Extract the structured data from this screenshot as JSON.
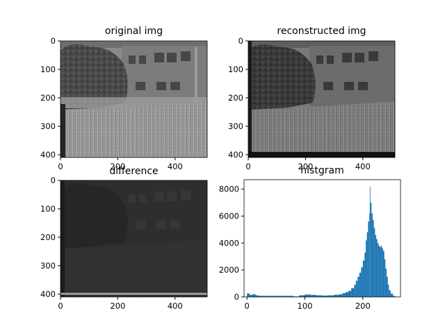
{
  "chart_data": [
    {
      "type": "image",
      "title": "original img",
      "content": "grayscale photo: tree at left, multi-storey building behind, grass field in foreground",
      "xlim": [
        0,
        512
      ],
      "ylim": [
        410,
        0
      ],
      "xticks": [
        0,
        200,
        400
      ],
      "yticks": [
        0,
        100,
        200,
        300,
        400
      ]
    },
    {
      "type": "image",
      "title": "reconstructed img",
      "content": "reconstructed grayscale photo, slightly darker, dark border bands at left and bottom",
      "xlim": [
        0,
        512
      ],
      "ylim": [
        410,
        0
      ],
      "xticks": [
        0,
        200,
        400
      ],
      "yticks": [
        0,
        100,
        200,
        300,
        400
      ]
    },
    {
      "type": "image",
      "title": "difference",
      "content": "dark difference image with faint outlines of building windows and grass texture",
      "xlim": [
        0,
        512
      ],
      "ylim": [
        410,
        0
      ],
      "xticks": [
        0,
        200,
        400
      ],
      "yticks": [
        0,
        100,
        200,
        300,
        400
      ]
    },
    {
      "type": "histogram",
      "title": "histgram",
      "color": "#1f77b4",
      "xlim": [
        -5,
        265
      ],
      "ylim": [
        0,
        8700
      ],
      "xticks": [
        0,
        100,
        200
      ],
      "yticks": [
        0,
        2000,
        4000,
        6000,
        8000
      ],
      "bins": [
        0,
        5,
        10,
        15,
        20,
        80,
        90,
        100,
        110,
        120,
        130,
        140,
        150,
        160,
        165,
        170,
        175,
        180,
        185,
        188,
        191,
        194,
        197,
        200,
        203,
        205,
        207,
        209,
        211,
        212,
        213,
        215,
        217,
        219,
        221,
        223,
        225,
        227,
        229,
        231,
        233,
        235,
        237,
        239,
        241,
        243,
        245,
        248,
        252,
        256,
        260
      ],
      "counts": [
        250,
        150,
        200,
        120,
        80,
        40,
        120,
        180,
        150,
        120,
        100,
        120,
        160,
        200,
        280,
        350,
        450,
        650,
        900,
        1200,
        1500,
        1800,
        2200,
        2700,
        3300,
        4200,
        4800,
        5600,
        6200,
        8200,
        7000,
        6200,
        5700,
        5100,
        4600,
        4300,
        4000,
        3800,
        3700,
        3800,
        3600,
        3400,
        2800,
        2100,
        1500,
        900,
        500,
        250,
        80,
        20
      ]
    }
  ]
}
